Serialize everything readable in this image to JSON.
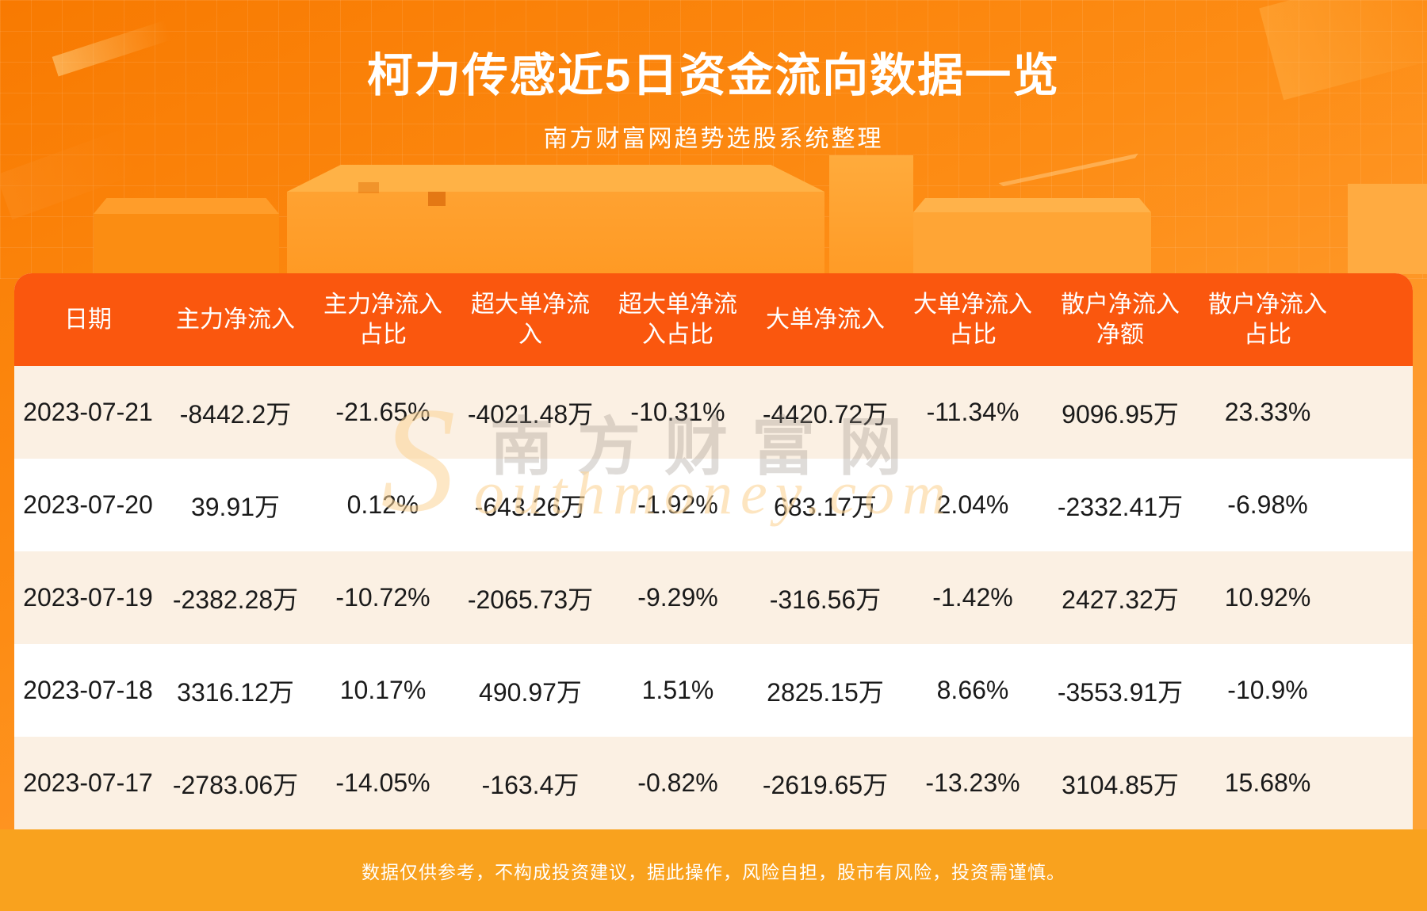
{
  "page": {
    "title": "柯力传感近5日资金流向数据一览",
    "subtitle": "南方财富网趋势选股系统整理",
    "footer_disclaimer": "数据仅供参考，不构成投资建议，据此操作，风险自担，股市有风险，投资需谨慎。",
    "watermark": {
      "cn": "南方财富网",
      "en_initial": "S",
      "en_rest": "outhmoney.com"
    }
  },
  "colors": {
    "bg_top": "#f87a01",
    "bg_bottom": "#ffa137",
    "table_header_bg": "#fa570e",
    "row_cream": "#fbf0e3",
    "row_white": "#ffffff",
    "footer_bg": "#f9a21e",
    "text_dark": "#1a1a1a",
    "text_white": "#ffffff"
  },
  "table": {
    "headers": [
      "日期",
      "主力净流入",
      "主力净流入\n占比",
      "超大单净流\n入",
      "超大单净流\n入占比",
      "大单净流入",
      "大单净流入\n占比",
      "散户净流入\n净额",
      "散户净流入\n占比"
    ],
    "rows": [
      [
        "2023-07-21",
        "-8442.2万",
        "-21.65%",
        "-4021.48万",
        "-10.31%",
        "-4420.72万",
        "-11.34%",
        "9096.95万",
        "23.33%"
      ],
      [
        "2023-07-20",
        "39.91万",
        "0.12%",
        "-643.26万",
        "-1.92%",
        "683.17万",
        "2.04%",
        "-2332.41万",
        "-6.98%"
      ],
      [
        "2023-07-19",
        "-2382.28万",
        "-10.72%",
        "-2065.73万",
        "-9.29%",
        "-316.56万",
        "-1.42%",
        "2427.32万",
        "10.92%"
      ],
      [
        "2023-07-18",
        "3316.12万",
        "10.17%",
        "490.97万",
        "1.51%",
        "2825.15万",
        "8.66%",
        "-3553.91万",
        "-10.9%"
      ],
      [
        "2023-07-17",
        "-2783.06万",
        "-14.05%",
        "-163.4万",
        "-0.82%",
        "-2619.65万",
        "-13.23%",
        "3104.85万",
        "15.68%"
      ]
    ]
  },
  "chart_data": {
    "type": "table",
    "title": "柯力传感近5日资金流向数据一览",
    "subtitle": "南方财富网趋势选股系统整理",
    "columns": [
      "日期",
      "主力净流入",
      "主力净流入占比",
      "超大单净流入",
      "超大单净流入占比",
      "大单净流入",
      "大单净流入占比",
      "散户净流入净额",
      "散户净流入占比"
    ],
    "rows": [
      {
        "日期": "2023-07-21",
        "主力净流入": "-8442.2万",
        "主力净流入占比": "-21.65%",
        "超大单净流入": "-4021.48万",
        "超大单净流入占比": "-10.31%",
        "大单净流入": "-4420.72万",
        "大单净流入占比": "-11.34%",
        "散户净流入净额": "9096.95万",
        "散户净流入占比": "23.33%"
      },
      {
        "日期": "2023-07-20",
        "主力净流入": "39.91万",
        "主力净流入占比": "0.12%",
        "超大单净流入": "-643.26万",
        "超大单净流入占比": "-1.92%",
        "大单净流入": "683.17万",
        "大单净流入占比": "2.04%",
        "散户净流入净额": "-2332.41万",
        "散户净流入占比": "-6.98%"
      },
      {
        "日期": "2023-07-19",
        "主力净流入": "-2382.28万",
        "主力净流入占比": "-10.72%",
        "超大单净流入": "-2065.73万",
        "超大单净流入占比": "-9.29%",
        "大单净流入": "-316.56万",
        "大单净流入占比": "-1.42%",
        "散户净流入净额": "2427.32万",
        "散户净流入占比": "10.92%"
      },
      {
        "日期": "2023-07-18",
        "主力净流入": "3316.12万",
        "主力净流入占比": "10.17%",
        "超大单净流入": "490.97万",
        "超大单净流入占比": "1.51%",
        "大单净流入": "2825.15万",
        "大单净流入占比": "8.66%",
        "散户净流入净额": "-3553.91万",
        "散户净流入占比": "-10.9%"
      },
      {
        "日期": "2023-07-17",
        "主力净流入": "-2783.06万",
        "主力净流入占比": "-14.05%",
        "超大单净流入": "-163.4万",
        "超大单净流入占比": "-0.82%",
        "大单净流入": "-2619.65万",
        "大单净流入占比": "-13.23%",
        "散户净流入净额": "3104.85万",
        "散户净流入占比": "15.68%"
      }
    ]
  }
}
